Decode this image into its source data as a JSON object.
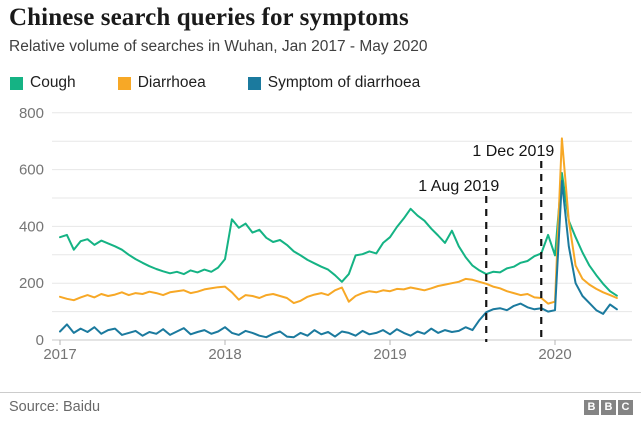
{
  "header": {
    "title": "Chinese search queries for symptoms",
    "subtitle": "Relative volume of searches in Wuhan, Jan 2017 - May 2020"
  },
  "footer": {
    "source": "Source: Baidu",
    "logo_letters": [
      "B",
      "B",
      "C"
    ]
  },
  "chart_data": {
    "type": "line",
    "title": "Chinese search queries for symptoms",
    "subtitle": "Relative volume of searches in Wuhan, Jan 2017 - May 2020",
    "x_unit": "half-month steps starting Jan 2017, ending May 2020",
    "x_ticks": [
      {
        "label": "2017",
        "month": 0
      },
      {
        "label": "2018",
        "month": 12
      },
      {
        "label": "2019",
        "month": 24
      },
      {
        "label": "2020",
        "month": 36
      }
    ],
    "ylim": [
      0,
      800
    ],
    "y_ticks_labeled": [
      0,
      200,
      400,
      600,
      800
    ],
    "y_grid_step": 100,
    "grid": true,
    "legend_position": "top",
    "annotations": [
      {
        "label": "1 Aug 2019",
        "month": 31,
        "label_bottom": 92,
        "line_top": 97
      },
      {
        "label": "1 Dec 2019",
        "month": 35,
        "label_bottom": 57,
        "line_top": 62
      }
    ],
    "series": [
      {
        "name": "Cough",
        "color": "#15b384",
        "values": [
          362,
          370,
          318,
          348,
          355,
          335,
          350,
          340,
          330,
          318,
          300,
          285,
          272,
          260,
          250,
          242,
          235,
          240,
          232,
          245,
          238,
          248,
          240,
          255,
          285,
          425,
          395,
          410,
          378,
          388,
          360,
          345,
          352,
          335,
          312,
          298,
          282,
          270,
          258,
          248,
          228,
          205,
          232,
          298,
          302,
          312,
          305,
          342,
          362,
          398,
          428,
          462,
          438,
          420,
          392,
          368,
          342,
          385,
          330,
          292,
          262,
          245,
          232,
          240,
          238,
          252,
          258,
          272,
          278,
          295,
          305,
          370,
          298,
          588,
          420,
          362,
          308,
          262,
          228,
          198,
          172,
          156
        ]
      },
      {
        "name": "Diarrhoea",
        "color": "#f7a826",
        "values": [
          152,
          145,
          140,
          150,
          158,
          150,
          162,
          155,
          160,
          168,
          158,
          165,
          162,
          170,
          165,
          158,
          168,
          172,
          175,
          165,
          170,
          178,
          182,
          186,
          188,
          168,
          142,
          158,
          155,
          148,
          158,
          162,
          155,
          148,
          130,
          138,
          152,
          160,
          165,
          158,
          175,
          185,
          135,
          155,
          165,
          172,
          168,
          175,
          172,
          180,
          178,
          185,
          180,
          175,
          182,
          190,
          195,
          200,
          205,
          215,
          212,
          205,
          198,
          188,
          182,
          172,
          165,
          158,
          162,
          150,
          148,
          128,
          135,
          710,
          420,
          262,
          215,
          195,
          180,
          168,
          158,
          148
        ]
      },
      {
        "name": "Symptom of diarrhoea",
        "color": "#1b7a9e",
        "values": [
          30,
          55,
          25,
          40,
          28,
          45,
          22,
          35,
          40,
          18,
          25,
          32,
          15,
          28,
          22,
          38,
          18,
          30,
          42,
          20,
          28,
          35,
          22,
          30,
          45,
          25,
          18,
          32,
          25,
          15,
          10,
          22,
          30,
          12,
          10,
          25,
          15,
          35,
          20,
          28,
          12,
          30,
          25,
          15,
          32,
          20,
          25,
          35,
          20,
          38,
          25,
          15,
          30,
          22,
          40,
          25,
          35,
          28,
          32,
          45,
          35,
          70,
          98,
          108,
          112,
          105,
          120,
          128,
          115,
          108,
          112,
          100,
          105,
          560,
          330,
          200,
          155,
          130,
          105,
          92,
          125,
          108
        ]
      }
    ],
    "colors": {
      "grid": "#e7e7e7",
      "axis": "#c9c9c9",
      "tick_label": "#757575",
      "annotation": "#141414"
    }
  }
}
